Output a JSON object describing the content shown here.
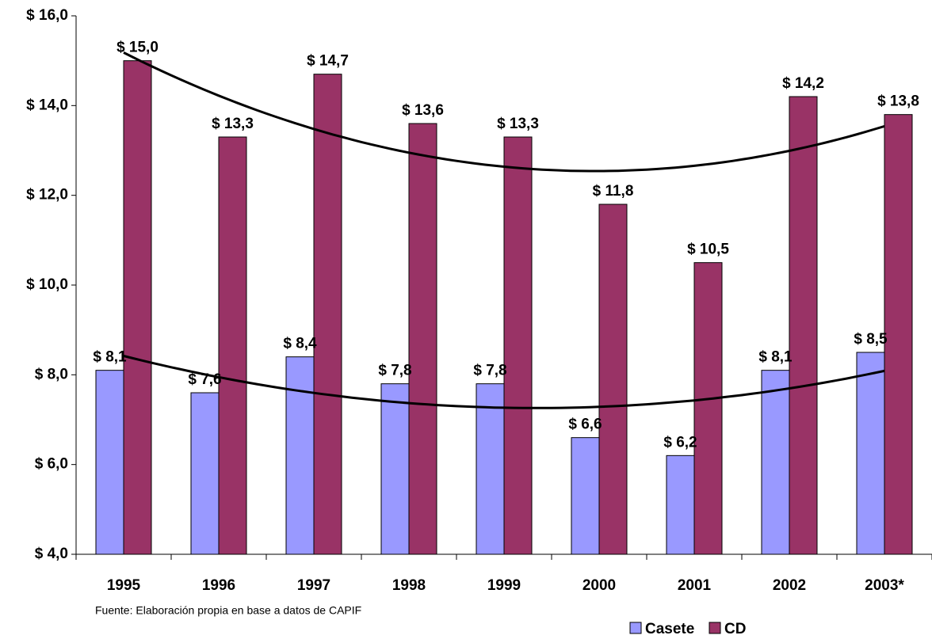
{
  "chart_data": {
    "type": "bar",
    "categories": [
      "1995",
      "1996",
      "1997",
      "1998",
      "1999",
      "2000",
      "2001",
      "2002",
      "2003*"
    ],
    "series": [
      {
        "name": "Casete",
        "color": "#9999ff",
        "values": [
          8.1,
          7.6,
          8.4,
          7.8,
          7.8,
          6.6,
          6.2,
          8.1,
          8.5
        ],
        "value_labels": [
          "$ 8,1",
          "$ 7,6",
          "$ 8,4",
          "$ 7,8",
          "$ 7,8",
          "$ 6,6",
          "$ 6,2",
          "$ 8,1",
          "$ 8,5"
        ]
      },
      {
        "name": "CD",
        "color": "#993366",
        "values": [
          15.0,
          13.3,
          14.7,
          13.6,
          13.3,
          11.8,
          10.5,
          14.2,
          13.8
        ],
        "value_labels": [
          "$ 15,0",
          "$ 13,3",
          "$ 14,7",
          "$ 13,6",
          "$ 13,3",
          "$ 11,8",
          "$ 10,5",
          "$ 14,2",
          "$ 13,8"
        ]
      }
    ],
    "ylim": [
      4,
      16
    ],
    "yticks": [
      {
        "value": 4,
        "label": "$ 4,0"
      },
      {
        "value": 6,
        "label": "$ 6,0"
      },
      {
        "value": 8,
        "label": "$ 8,0"
      },
      {
        "value": 10,
        "label": "$ 10,0"
      },
      {
        "value": 12,
        "label": "$ 12,0"
      },
      {
        "value": 14,
        "label": "$ 14,0"
      },
      {
        "value": 16,
        "label": "$ 16,0"
      }
    ],
    "trendline": {
      "type": "polynomial",
      "order": 2
    },
    "source": "Fuente: Elaboración propia en base a datos de CAPIF",
    "legend": "bottom-right"
  }
}
